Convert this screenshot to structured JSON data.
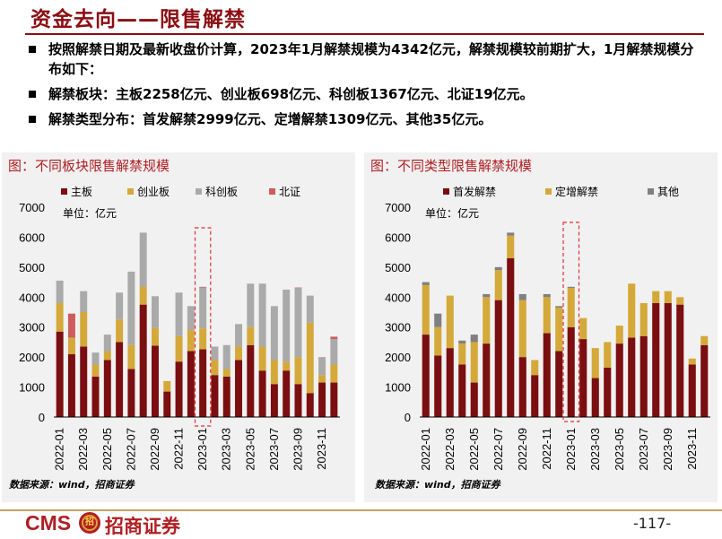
{
  "title": "资金去向——限售解禁",
  "bullets": [
    "按照解禁日期及最新收盘价计算，2023年1月解禁规模为4342亿元，解禁规模较前期扩大，1月解禁规模分布如下：",
    "解禁板块：主板2258亿元、创业板698亿元、科创板1367亿元、北证19亿元。",
    "解禁类型分布：首发解禁2999亿元、定增解禁1309亿元、其他35亿元。"
  ],
  "chart_data": [
    {
      "type": "bar",
      "stacked": true,
      "title": "图：不同板块限售解禁规模",
      "unit_label": "单位：亿元",
      "source": "数据来源：wind，招商证券",
      "ylim": [
        0,
        7000
      ],
      "yticks": [
        0,
        1000,
        2000,
        3000,
        4000,
        5000,
        6000,
        7000
      ],
      "categories": [
        "2022-01",
        "2022-02",
        "2022-03",
        "2022-04",
        "2022-05",
        "2022-06",
        "2022-07",
        "2022-08",
        "2022-09",
        "2022-10",
        "2022-11",
        "2022-12",
        "2023-01",
        "2023-02",
        "2023-03",
        "2023-04",
        "2023-05",
        "2023-06",
        "2023-07",
        "2023-08",
        "2023-09",
        "2023-10",
        "2023-11",
        "2023-12"
      ],
      "xticks": [
        "2022-01",
        "2022-03",
        "2022-05",
        "2022-07",
        "2022-09",
        "2022-11",
        "2023-01",
        "2023-03",
        "2023-05",
        "2023-07",
        "2023-09",
        "2023-11"
      ],
      "highlight": "2023-01",
      "legend_position": "top",
      "series": [
        {
          "name": "主板",
          "color": "#7b0e10",
          "values": [
            2850,
            2100,
            2350,
            1350,
            1900,
            2500,
            1600,
            3750,
            2380,
            850,
            1850,
            2200,
            2258,
            1400,
            1350,
            1900,
            2400,
            1550,
            1100,
            1550,
            1100,
            800,
            1150,
            1150
          ]
        },
        {
          "name": "创业板",
          "color": "#d4a93a",
          "values": [
            950,
            550,
            1150,
            400,
            300,
            750,
            800,
            600,
            600,
            350,
            850,
            700,
            698,
            500,
            250,
            450,
            600,
            800,
            800,
            300,
            900,
            2350,
            250,
            600
          ]
        },
        {
          "name": "科创板",
          "color": "#aaaaaa",
          "values": [
            750,
            0,
            700,
            400,
            550,
            900,
            2450,
            1800,
            1050,
            0,
            1450,
            800,
            1367,
            450,
            800,
            750,
            1450,
            2100,
            1800,
            2400,
            2300,
            900,
            600,
            850
          ]
        },
        {
          "name": "北证",
          "color": "#cd5c5c",
          "values": [
            0,
            800,
            0,
            0,
            0,
            0,
            0,
            0,
            0,
            0,
            0,
            0,
            19,
            0,
            0,
            0,
            0,
            0,
            0,
            0,
            20,
            0,
            0,
            80
          ]
        }
      ]
    },
    {
      "type": "bar",
      "stacked": true,
      "title": "图：不同类型限售解禁规模",
      "unit_label": "单位：亿元",
      "source": "数据来源：wind，招商证券",
      "ylim": [
        0,
        7000
      ],
      "yticks": [
        0,
        1000,
        2000,
        3000,
        4000,
        5000,
        6000,
        7000
      ],
      "categories": [
        "2022-01",
        "2022-02",
        "2022-03",
        "2022-04",
        "2022-05",
        "2022-06",
        "2022-07",
        "2022-08",
        "2022-09",
        "2022-10",
        "2022-11",
        "2022-12",
        "2023-01",
        "2023-02",
        "2023-03",
        "2023-04",
        "2023-05",
        "2023-06",
        "2023-07",
        "2023-08",
        "2023-09",
        "2023-10",
        "2023-11",
        "2023-12"
      ],
      "xticks": [
        "2022-01",
        "2022-03",
        "2022-05",
        "2022-07",
        "2022-09",
        "2022-11",
        "2023-01",
        "2023-03",
        "2023-05",
        "2023-07",
        "2023-09",
        "2023-11"
      ],
      "highlight": "2023-01",
      "legend_position": "top",
      "series": [
        {
          "name": "首发解禁",
          "color": "#7b0e10",
          "values": [
            2750,
            2050,
            2300,
            1750,
            1150,
            2450,
            3900,
            5300,
            2000,
            1400,
            2800,
            2200,
            2999,
            2600,
            1300,
            1650,
            2450,
            2650,
            2700,
            3800,
            3800,
            3750,
            1750,
            2400
          ]
        },
        {
          "name": "定增解禁",
          "color": "#d4a93a",
          "values": [
            1650,
            950,
            1750,
            700,
            1350,
            1550,
            1000,
            750,
            1900,
            500,
            1200,
            1450,
            1309,
            700,
            1000,
            850,
            600,
            1800,
            1100,
            400,
            400,
            250,
            200,
            300
          ]
        },
        {
          "name": "其他",
          "color": "#808080",
          "values": [
            100,
            450,
            0,
            100,
            250,
            100,
            100,
            100,
            200,
            0,
            100,
            50,
            35,
            0,
            0,
            0,
            0,
            0,
            0,
            0,
            0,
            0,
            0,
            0
          ]
        }
      ]
    }
  ],
  "footer": {
    "brand": "CMS",
    "logo_mark": "招",
    "company": "招商证券",
    "page": "-117-"
  }
}
